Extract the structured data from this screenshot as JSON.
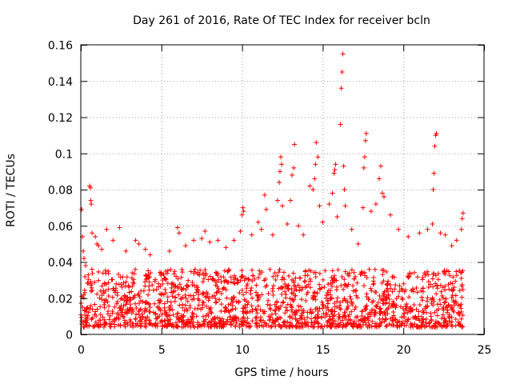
{
  "chart_data": {
    "type": "scatter",
    "title": "Day 261 of 2016, Rate Of TEC Index for receiver bcln",
    "xlabel": "GPS time / hours",
    "ylabel": "ROTI / TECUs",
    "xlim": [
      0,
      25
    ],
    "ylim": [
      0,
      0.16
    ],
    "xticks": [
      0,
      5,
      10,
      15,
      20,
      25
    ],
    "xtick_labels": [
      "0",
      "5",
      "10",
      "15",
      "20",
      "25"
    ],
    "yticks": [
      0,
      0.02,
      0.04,
      0.06,
      0.08,
      0.1,
      0.12,
      0.14,
      0.16
    ],
    "ytick_labels": [
      "0",
      "0.02",
      "0.04",
      "0.06",
      "0.08",
      "0.1",
      "0.12",
      "0.14",
      "0.16"
    ],
    "grid": true,
    "marker": "+",
    "color": "#ff0000",
    "series": [
      {
        "name": "ROTI",
        "notes": "Dense band of points between ~0.005 and ~0.03 TECU across 0-23.7 h; listed values are the visible outliers/peaks.",
        "points": [
          [
            0.05,
            0.069
          ],
          [
            0.1,
            0.054
          ],
          [
            0.15,
            0.046
          ],
          [
            0.2,
            0.042
          ],
          [
            0.3,
            0.038
          ],
          [
            0.55,
            0.082
          ],
          [
            0.6,
            0.081
          ],
          [
            0.62,
            0.074
          ],
          [
            0.65,
            0.072
          ],
          [
            0.7,
            0.056
          ],
          [
            0.9,
            0.054
          ],
          [
            1.0,
            0.05
          ],
          [
            1.1,
            0.049
          ],
          [
            1.3,
            0.047
          ],
          [
            1.6,
            0.058
          ],
          [
            2.0,
            0.052
          ],
          [
            2.4,
            0.059
          ],
          [
            2.8,
            0.046
          ],
          [
            3.4,
            0.052
          ],
          [
            3.6,
            0.05
          ],
          [
            4.0,
            0.047
          ],
          [
            4.3,
            0.044
          ],
          [
            5.0,
            0.034
          ],
          [
            5.5,
            0.046
          ],
          [
            6.0,
            0.059
          ],
          [
            6.1,
            0.056
          ],
          [
            6.5,
            0.049
          ],
          [
            7.0,
            0.052
          ],
          [
            7.5,
            0.053
          ],
          [
            7.7,
            0.057
          ],
          [
            8.0,
            0.051
          ],
          [
            8.5,
            0.052
          ],
          [
            9.0,
            0.048
          ],
          [
            9.5,
            0.052
          ],
          [
            9.9,
            0.057
          ],
          [
            10.0,
            0.066
          ],
          [
            10.05,
            0.07
          ],
          [
            10.1,
            0.068
          ],
          [
            10.6,
            0.055
          ],
          [
            11.0,
            0.062
          ],
          [
            11.2,
            0.058
          ],
          [
            11.4,
            0.077
          ],
          [
            11.5,
            0.069
          ],
          [
            11.9,
            0.055
          ],
          [
            12.2,
            0.074
          ],
          [
            12.3,
            0.084
          ],
          [
            12.35,
            0.09
          ],
          [
            12.4,
            0.098
          ],
          [
            12.45,
            0.094
          ],
          [
            12.5,
            0.071
          ],
          [
            12.8,
            0.061
          ],
          [
            13.0,
            0.074
          ],
          [
            13.1,
            0.088
          ],
          [
            13.2,
            0.092
          ],
          [
            13.25,
            0.105
          ],
          [
            13.5,
            0.06
          ],
          [
            13.8,
            0.055
          ],
          [
            14.2,
            0.082
          ],
          [
            14.4,
            0.08
          ],
          [
            14.5,
            0.086
          ],
          [
            14.55,
            0.094
          ],
          [
            14.6,
            0.106
          ],
          [
            14.7,
            0.098
          ],
          [
            14.8,
            0.071
          ],
          [
            15.0,
            0.062
          ],
          [
            15.4,
            0.072
          ],
          [
            15.6,
            0.078
          ],
          [
            15.7,
            0.089
          ],
          [
            15.75,
            0.091
          ],
          [
            15.8,
            0.094
          ],
          [
            15.9,
            0.065
          ],
          [
            16.1,
            0.116
          ],
          [
            16.15,
            0.136
          ],
          [
            16.2,
            0.145
          ],
          [
            16.25,
            0.155
          ],
          [
            16.3,
            0.093
          ],
          [
            16.35,
            0.08
          ],
          [
            16.4,
            0.071
          ],
          [
            16.8,
            0.058
          ],
          [
            17.2,
            0.05
          ],
          [
            17.5,
            0.07
          ],
          [
            17.55,
            0.092
          ],
          [
            17.6,
            0.098
          ],
          [
            17.65,
            0.107
          ],
          [
            17.7,
            0.111
          ],
          [
            18.0,
            0.068
          ],
          [
            18.3,
            0.072
          ],
          [
            18.5,
            0.086
          ],
          [
            18.6,
            0.093
          ],
          [
            18.7,
            0.078
          ],
          [
            18.8,
            0.076
          ],
          [
            19.2,
            0.066
          ],
          [
            19.7,
            0.058
          ],
          [
            20.3,
            0.054
          ],
          [
            21.0,
            0.056
          ],
          [
            21.5,
            0.058
          ],
          [
            21.8,
            0.061
          ],
          [
            21.85,
            0.08
          ],
          [
            21.9,
            0.089
          ],
          [
            21.95,
            0.104
          ],
          [
            22.0,
            0.11
          ],
          [
            22.05,
            0.111
          ],
          [
            22.3,
            0.056
          ],
          [
            22.6,
            0.055
          ],
          [
            23.0,
            0.049
          ],
          [
            23.3,
            0.052
          ],
          [
            23.6,
            0.058
          ],
          [
            23.65,
            0.064
          ],
          [
            23.7,
            0.067
          ]
        ]
      }
    ]
  }
}
